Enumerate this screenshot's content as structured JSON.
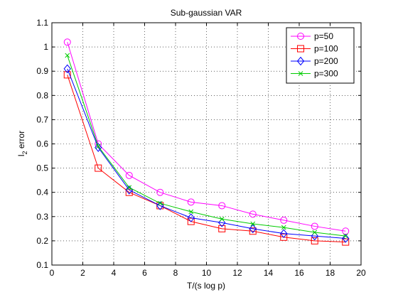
{
  "chart_data": {
    "type": "line",
    "title": "Sub-gaussian VAR",
    "xlabel": "T/(s log p)",
    "ylabel_main": "l",
    "ylabel_sub": "2",
    "ylabel_rest": " error",
    "xlim": [
      0,
      20
    ],
    "ylim": [
      0.1,
      1.1
    ],
    "xticks": [
      0,
      2,
      4,
      6,
      8,
      10,
      12,
      14,
      16,
      18,
      20
    ],
    "yticks": [
      0.1,
      0.2,
      0.3,
      0.4,
      0.5,
      0.6,
      0.7,
      0.8,
      0.9,
      1,
      1.1
    ],
    "grid": true,
    "legend_position": "top-right",
    "x": [
      1,
      3,
      5,
      7,
      9,
      11,
      13,
      15,
      17,
      19
    ],
    "series": [
      {
        "name": "p=50",
        "color": "#ff00ff",
        "marker": "circle",
        "values": [
          1.02,
          0.6,
          0.47,
          0.4,
          0.36,
          0.345,
          0.31,
          0.285,
          0.26,
          0.24
        ]
      },
      {
        "name": "p=100",
        "color": "#ff0000",
        "marker": "square",
        "values": [
          0.885,
          0.5,
          0.4,
          0.345,
          0.28,
          0.25,
          0.24,
          0.215,
          0.2,
          0.195
        ]
      },
      {
        "name": "p=200",
        "color": "#0000ff",
        "marker": "diamond",
        "values": [
          0.91,
          0.585,
          0.41,
          0.345,
          0.295,
          0.275,
          0.25,
          0.23,
          0.22,
          0.21
        ]
      },
      {
        "name": "p=300",
        "color": "#00cc00",
        "marker": "x",
        "values": [
          0.965,
          0.59,
          0.42,
          0.355,
          0.32,
          0.29,
          0.27,
          0.255,
          0.235,
          0.22
        ]
      }
    ]
  }
}
